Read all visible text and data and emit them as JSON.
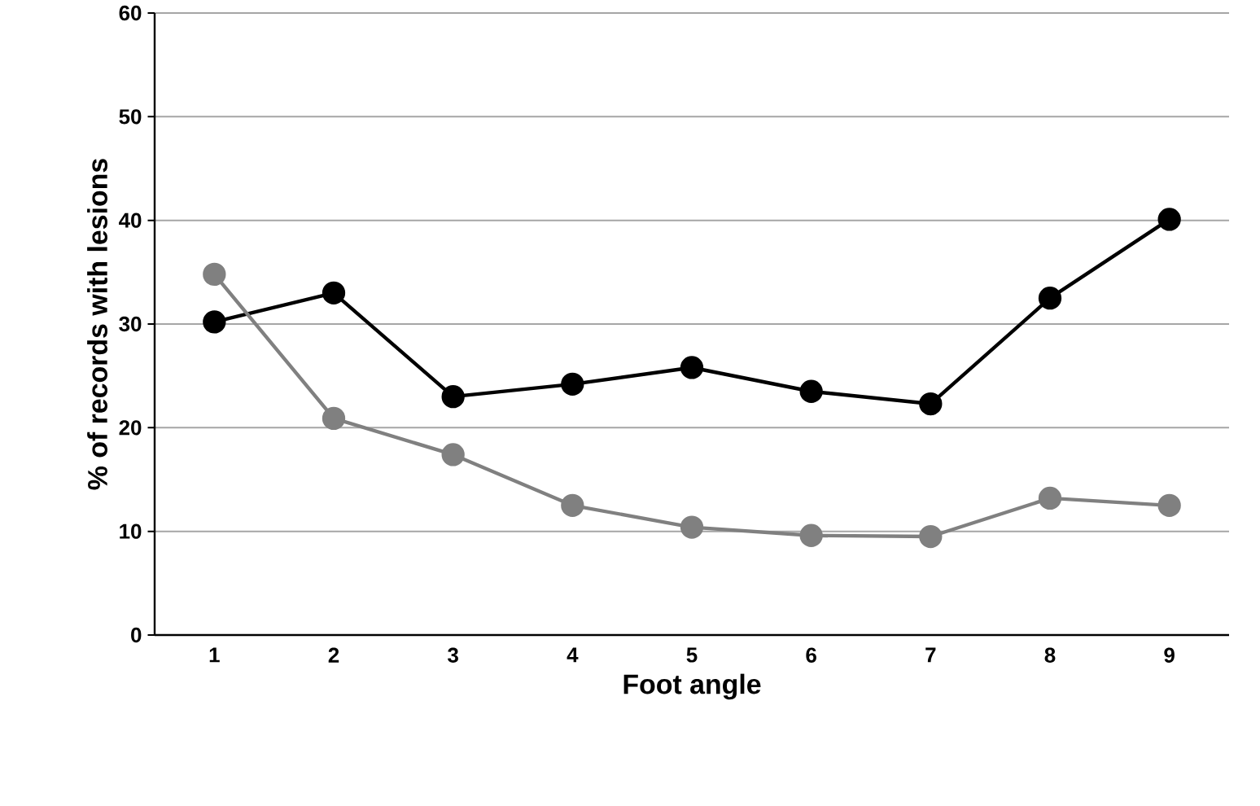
{
  "chart_data": {
    "type": "line",
    "xlabel": "Foot angle",
    "ylabel": "% of records with lesions",
    "categories": [
      "1",
      "2",
      "3",
      "4",
      "5",
      "6",
      "7",
      "8",
      "9"
    ],
    "series": [
      {
        "color": "#000000",
        "values": [
          30.2,
          33.0,
          23.0,
          24.2,
          25.8,
          23.5,
          22.3,
          32.5,
          40.1
        ]
      },
      {
        "color": "#808080",
        "values": [
          34.8,
          20.9,
          17.4,
          12.5,
          10.4,
          9.6,
          9.5,
          13.2,
          12.5
        ]
      }
    ],
    "ylim": [
      0,
      60
    ],
    "yticks": [
      0,
      10,
      20,
      30,
      40,
      50,
      60
    ],
    "grid": "y",
    "marker": "circle",
    "line_style": "solid"
  }
}
